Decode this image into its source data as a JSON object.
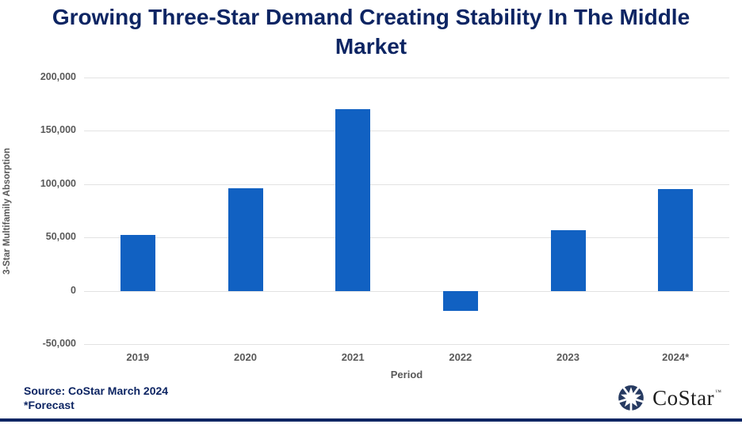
{
  "title": {
    "text": "Growing Three-Star Demand Creating Stability In The Middle Market"
  },
  "chart_data": {
    "type": "bar",
    "categories": [
      "2019",
      "2020",
      "2021",
      "2022",
      "2023",
      "2024*"
    ],
    "values": [
      52500,
      96000,
      170000,
      -18500,
      57000,
      95500
    ],
    "title": "Growing Three-Star Demand Creating Stability In The Middle Market",
    "xlabel": "Period",
    "ylabel": "3-Star Multifamily Absorption",
    "ylim": [
      -50000,
      200000
    ],
    "ytick_step": 50000,
    "ytick_labels": [
      "200,000",
      "150,000",
      "100,000",
      "50,000",
      "0",
      "-50,000"
    ],
    "grid": true,
    "legend": "none",
    "bar_color": "#1161c2",
    "gridline_color": "#e2e2e2",
    "axis_text_color": "#595959"
  },
  "footer": {
    "source_line1": "Source: CoStar March 2024",
    "source_line2": "*Forecast",
    "logo_text": "CoStar",
    "logo_tm": "™",
    "accent_color": "#0d2563"
  }
}
